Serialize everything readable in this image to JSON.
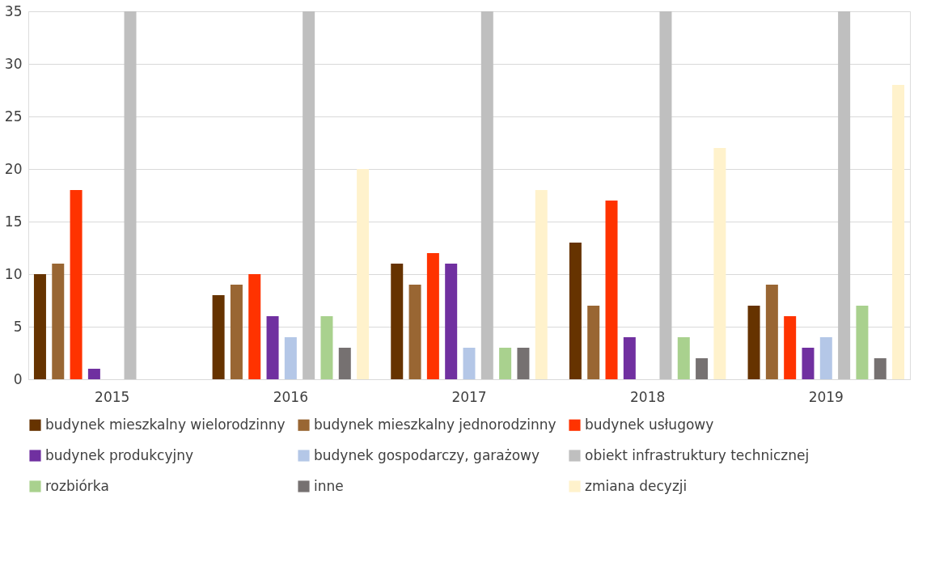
{
  "chart_data": {
    "type": "bar",
    "categories": [
      "2015",
      "2016",
      "2017",
      "2018",
      "2019"
    ],
    "ylim": [
      0,
      35
    ],
    "yticks": [
      0,
      5,
      10,
      15,
      20,
      25,
      30,
      35
    ],
    "grid": "y",
    "legend": "bottom",
    "series": [
      {
        "name": "budynek mieszkalny wielorodzinny",
        "color": "#663300",
        "values": [
          10,
          8,
          11,
          13,
          7
        ]
      },
      {
        "name": "budynek mieszkalny jednorodzinny",
        "color": "#996633",
        "values": [
          11,
          9,
          9,
          7,
          9
        ]
      },
      {
        "name": "budynek usługowy",
        "color": "#ff3300",
        "values": [
          18,
          10,
          12,
          17,
          6
        ]
      },
      {
        "name": "budynek produkcyjny",
        "color": "#7030a0",
        "values": [
          1,
          6,
          11,
          4,
          3
        ]
      },
      {
        "name": "budynek gospodarczy, garażowy",
        "color": "#b4c7e7",
        "values": [
          null,
          4,
          3,
          null,
          4
        ]
      },
      {
        "name": "obiekt infrastruktury technicznej",
        "color": "#bfbfbf",
        "values": [
          35,
          35,
          35,
          35,
          35
        ]
      },
      {
        "name": "rozbiórka",
        "color": "#a9d18e",
        "values": [
          null,
          6,
          3,
          4,
          7
        ]
      },
      {
        "name": "inne",
        "color": "#767171",
        "values": [
          null,
          3,
          3,
          2,
          2
        ]
      },
      {
        "name": "zmiana decyzji",
        "color": "#fff2cc",
        "values": [
          null,
          20,
          18,
          22,
          28
        ]
      }
    ]
  }
}
